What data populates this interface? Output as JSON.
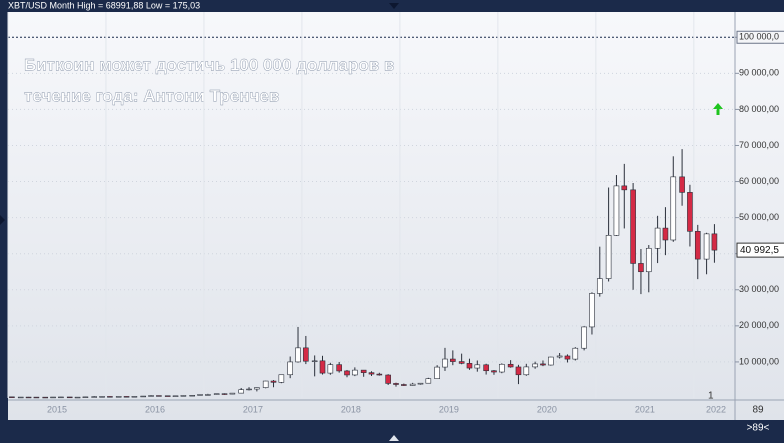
{
  "chart_data": {
    "type": "candlestick",
    "header": "XBT/USD Month High = 68991,88 Low = 175,03",
    "title": [
      "Биткоин может достичь 100 000 долларов в",
      "течение года: Антони Тренчев"
    ],
    "up_color": "#ffffff",
    "down_color": "#d42a45",
    "xlim": [
      2015,
      2022.42
    ],
    "ylim": [
      0,
      107000
    ],
    "xticks": [
      {
        "value": 2015.5,
        "label": "2015"
      },
      {
        "value": 2016.5,
        "label": "2016"
      },
      {
        "value": 2017.5,
        "label": "2017"
      },
      {
        "value": 2018.5,
        "label": "2018"
      },
      {
        "value": 2019.5,
        "label": "2019"
      },
      {
        "value": 2020.5,
        "label": "2020"
      },
      {
        "value": 2021.5,
        "label": "2021"
      },
      {
        "value": 2022.5,
        "label": "2022"
      }
    ],
    "yticks": [
      {
        "value": 10000,
        "label": "10 000,00"
      },
      {
        "value": 20000,
        "label": "20 000,00"
      },
      {
        "value": 30000,
        "label": "30 000,00"
      },
      {
        "value": 40000,
        "label": "40 000,00"
      },
      {
        "value": 50000,
        "label": "50 000,00"
      },
      {
        "value": 60000,
        "label": "60 000,00"
      },
      {
        "value": 70000,
        "label": "70 000,00"
      },
      {
        "value": 80000,
        "label": "80 000,00"
      },
      {
        "value": 90000,
        "label": "90 000,00"
      },
      {
        "value": 100000,
        "label": "100 000,0"
      }
    ],
    "last_price": {
      "value": 40992.5,
      "label": "40 992,5"
    },
    "annotations": [
      "1",
      "89",
      ">89<"
    ],
    "x": [
      2015.04,
      2015.13,
      2015.21,
      2015.29,
      2015.38,
      2015.46,
      2015.54,
      2015.63,
      2015.71,
      2015.79,
      2015.88,
      2015.96,
      2016.04,
      2016.13,
      2016.21,
      2016.29,
      2016.38,
      2016.46,
      2016.54,
      2016.63,
      2016.71,
      2016.79,
      2016.88,
      2016.96,
      2017.04,
      2017.13,
      2017.21,
      2017.29,
      2017.38,
      2017.46,
      2017.54,
      2017.63,
      2017.71,
      2017.79,
      2017.88,
      2017.96,
      2018.04,
      2018.13,
      2018.21,
      2018.29,
      2018.38,
      2018.46,
      2018.54,
      2018.63,
      2018.71,
      2018.79,
      2018.88,
      2018.96,
      2019.04,
      2019.13,
      2019.21,
      2019.29,
      2019.38,
      2019.46,
      2019.54,
      2019.63,
      2019.71,
      2019.79,
      2019.88,
      2019.96,
      2020.04,
      2020.13,
      2020.21,
      2020.29,
      2020.38,
      2020.46,
      2020.54,
      2020.63,
      2020.71,
      2020.79,
      2020.88,
      2020.96,
      2021.04,
      2021.13,
      2021.21,
      2021.29,
      2021.38,
      2021.46,
      2021.54,
      2021.63,
      2021.71,
      2021.79,
      2021.88,
      2021.96,
      2022.04,
      2022.13,
      2022.21
    ],
    "open": [
      320,
      217,
      254,
      244,
      236,
      230,
      263,
      284,
      230,
      236,
      314,
      377,
      430,
      368,
      437,
      416,
      448,
      531,
      673,
      624,
      573,
      608,
      700,
      743,
      963,
      965,
      1190,
      1080,
      1350,
      2300,
      2480,
      2880,
      4700,
      4340,
      6450,
      10000,
      13900,
      10200,
      10300,
      6900,
      9240,
      7500,
      6390,
      7730,
      7030,
      6630,
      6370,
      4040,
      3740,
      3460,
      3850,
      4100,
      5350,
      8570,
      10800,
      10100,
      9600,
      8300,
      9200,
      7560,
      7200,
      9350,
      8600,
      6440,
      8620,
      9450,
      9140,
      11350,
      11650,
      10780,
      13800,
      19700,
      28990,
      33100,
      45100,
      58800,
      57700,
      37300,
      35000,
      41500,
      47100,
      43800,
      61300,
      57000,
      46200,
      38500,
      45500
    ],
    "high": [
      320,
      265,
      300,
      260,
      250,
      268,
      318,
      285,
      245,
      335,
      500,
      470,
      465,
      445,
      440,
      467,
      550,
      780,
      680,
      625,
      630,
      740,
      760,
      980,
      1160,
      1210,
      1290,
      1350,
      2780,
      3000,
      2940,
      4770,
      4980,
      6470,
      11500,
      19700,
      17200,
      11800,
      11700,
      9760,
      9990,
      7770,
      8490,
      7760,
      7400,
      7000,
      6600,
      4250,
      4000,
      4200,
      4130,
      5600,
      9100,
      13900,
      13200,
      12300,
      10900,
      10400,
      9500,
      7750,
      9600,
      10500,
      9200,
      9480,
      10070,
      10400,
      11440,
      12470,
      12090,
      14100,
      19900,
      29300,
      41950,
      58350,
      61800,
      64900,
      59600,
      41300,
      42400,
      50500,
      52900,
      67000,
      68991.88,
      59100,
      47990,
      45800,
      48200
    ],
    "low": [
      175.03,
      210,
      235,
      215,
      225,
      220,
      254,
      200,
      225,
      235,
      300,
      345,
      355,
      365,
      395,
      412,
      440,
      510,
      475,
      470,
      570,
      605,
      680,
      740,
      750,
      920,
      890,
      1060,
      1320,
      2100,
      1830,
      2680,
      2980,
      4100,
      5500,
      9800,
      9400,
      6000,
      6500,
      6450,
      7030,
      5750,
      6070,
      5880,
      6100,
      6200,
      3600,
      3150,
      3350,
      3380,
      3700,
      4080,
      5340,
      7500,
      9100,
      9350,
      7800,
      7300,
      6500,
      6430,
      6870,
      8400,
      3850,
      6150,
      8110,
      8830,
      8970,
      10950,
      9850,
      10400,
      13200,
      17600,
      28100,
      32300,
      44950,
      47000,
      30000,
      28800,
      29300,
      37400,
      39600,
      43300,
      53300,
      42000,
      32950,
      34300,
      37500
    ],
    "close": [
      217,
      254,
      244,
      236,
      230,
      263,
      284,
      230,
      236,
      314,
      377,
      430,
      368,
      437,
      416,
      448,
      531,
      673,
      624,
      573,
      608,
      700,
      743,
      963,
      965,
      1190,
      1080,
      1350,
      2300,
      2480,
      2880,
      4700,
      4340,
      6450,
      10000,
      13900,
      10200,
      10300,
      6900,
      9240,
      7500,
      6390,
      7730,
      7030,
      6630,
      6370,
      4040,
      3740,
      3460,
      3850,
      4100,
      5350,
      8570,
      10800,
      10100,
      9600,
      8300,
      9200,
      7560,
      7200,
      9350,
      8600,
      6440,
      8620,
      9450,
      9140,
      11350,
      11650,
      10780,
      13800,
      19700,
      28990,
      33100,
      45100,
      58800,
      57700,
      37300,
      35000,
      41500,
      47100,
      43800,
      61300,
      57000,
      46200,
      38500,
      45500,
      40992.5
    ]
  }
}
